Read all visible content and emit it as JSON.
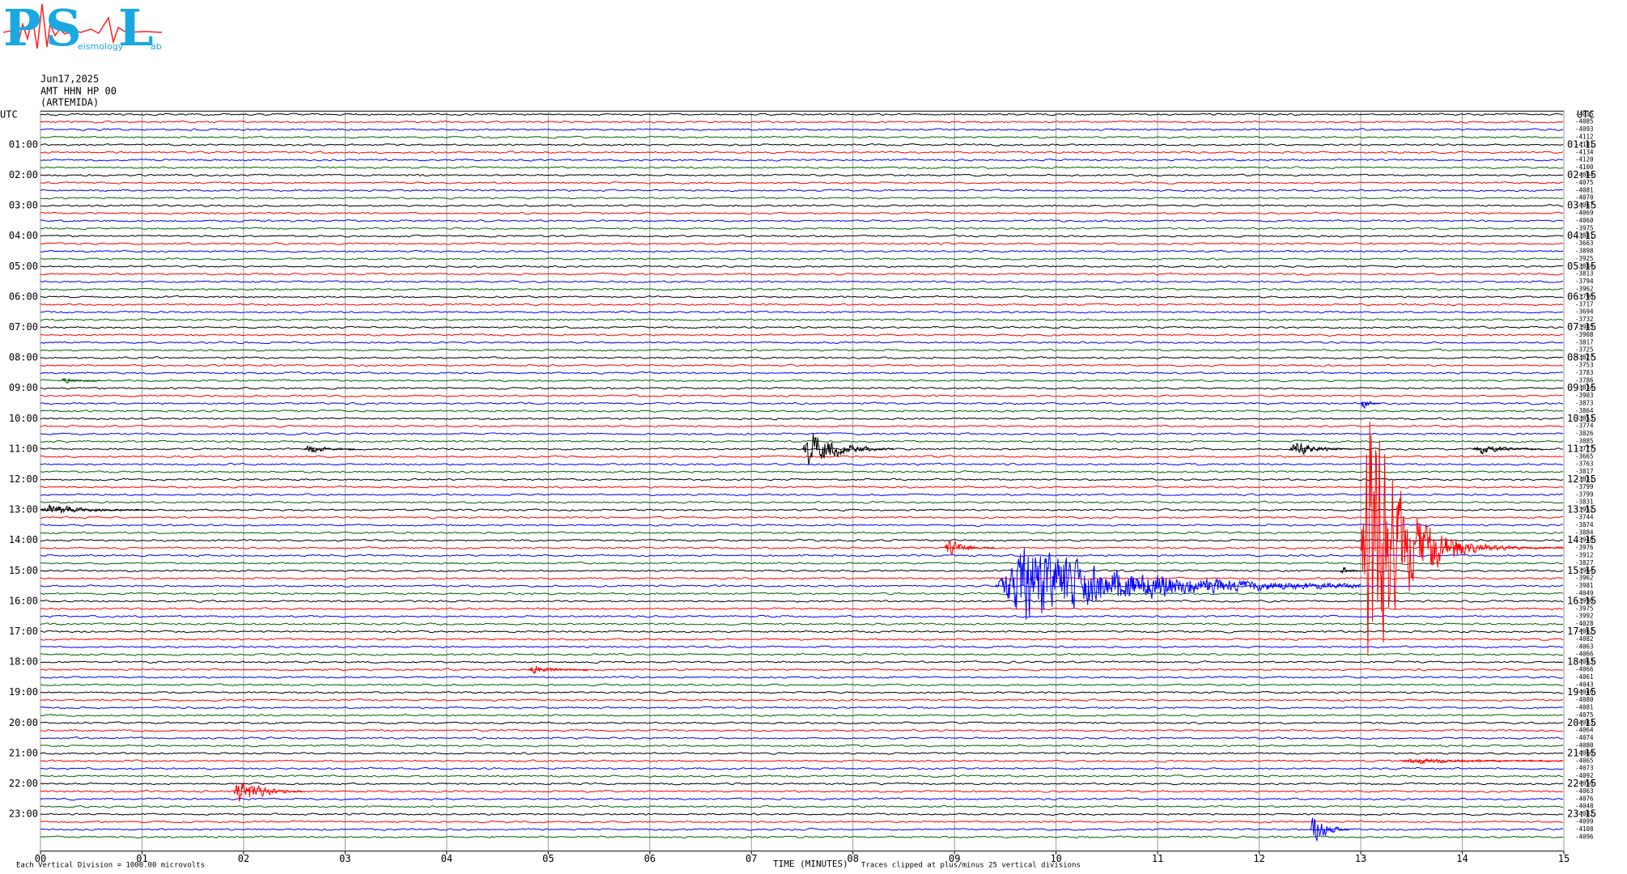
{
  "logo": {
    "letters": [
      "P",
      "S",
      "L"
    ],
    "words": [
      "eismology",
      "ab"
    ]
  },
  "chart_data": {
    "type": "helicorder",
    "date": "Jun17,2025",
    "station": "AMT HHN HP 00",
    "site": "(ARTEMIDA)",
    "left_axis_title": "UTC",
    "right_axis_title": "UTC",
    "left_labels": [
      "01:00",
      "02:00",
      "03:00",
      "04:00",
      "05:00",
      "06:00",
      "07:00",
      "08:00",
      "09:00",
      "10:00",
      "11:00",
      "12:00",
      "13:00",
      "14:00",
      "15:00",
      "16:00",
      "17:00",
      "18:00",
      "19:00",
      "20:00",
      "21:00",
      "22:00",
      "23:00"
    ],
    "right_labels": [
      "01:15",
      "02:15",
      "03:15",
      "04:15",
      "05:15",
      "06:15",
      "07:15",
      "08:15",
      "09:15",
      "10:15",
      "11:15",
      "12:15",
      "13:15",
      "14:15",
      "15:15",
      "16:15",
      "17:15",
      "18:15",
      "19:15",
      "20:15",
      "21:15",
      "22:15",
      "23:15"
    ],
    "trace_offsets": [
      -4015,
      -4085,
      -4093,
      -4112,
      -4101,
      -4134,
      -4120,
      -4100,
      -4084,
      -4075,
      -4081,
      -4070,
      -4067,
      -4069,
      -4060,
      -3975,
      -3881,
      -3663,
      -3898,
      -3925,
      -3884,
      -3813,
      -3794,
      -3962,
      -3796,
      -3717,
      -3694,
      -3732,
      -3985,
      -3908,
      -3817,
      -3725,
      -3827,
      -3753,
      -3783,
      -3786,
      -3834,
      -3903,
      -3873,
      -3864,
      -3853,
      -3774,
      -3826,
      -3885,
      -3777,
      -3665,
      -3763,
      -3817,
      -3831,
      -3799,
      -3799,
      -3831,
      -3952,
      -3744,
      -3874,
      -3884,
      -3948,
      -3976,
      -3912,
      -3827,
      -3964,
      -3962,
      -3981,
      -4049,
      -3990,
      -3975,
      -3992,
      -4028,
      -4062,
      -4082,
      -4063,
      -4066,
      -4063,
      -4066,
      -4061,
      -4043,
      -4046,
      -4080,
      -4081,
      -4075,
      -4083,
      -4064,
      -4074,
      -4080,
      -4066,
      -4065,
      -4073,
      -4092,
      -4056,
      -4063,
      -4076,
      -4048,
      -4082,
      -4099,
      -4108,
      -4096
    ],
    "trace_colors": [
      "#000000",
      "#ff0000",
      "#0000ff",
      "#006400"
    ],
    "xlim": [
      0,
      15
    ],
    "xticks": [
      {
        "value": 0,
        "label": "00"
      },
      {
        "value": 1,
        "label": "01"
      },
      {
        "value": 2,
        "label": "02"
      },
      {
        "value": 3,
        "label": "03"
      },
      {
        "value": 4,
        "label": "04"
      },
      {
        "value": 5,
        "label": "05"
      },
      {
        "value": 6,
        "label": "06"
      },
      {
        "value": 7,
        "label": "07"
      },
      {
        "value": 8,
        "label": "08"
      },
      {
        "value": 9,
        "label": "09"
      },
      10,
      11,
      12,
      13,
      14,
      15
    ],
    "xlabel": "TIME (MINUTES)",
    "scale_note": "Each Vertical Division = 1000.00 microvolts",
    "clip_note": "Traces clipped at plus/minus 25 vertical divisions",
    "grid": true,
    "events": [
      {
        "trace": 57,
        "from": 13.0,
        "to": 14.0,
        "amp": 25
      },
      {
        "trace": 57,
        "from": 13.9,
        "to": 15,
        "amp": 1.2
      },
      {
        "trace": 62,
        "from": 9.4,
        "to": 13.0,
        "amp": 6
      },
      {
        "trace": 57,
        "from": 8.9,
        "to": 9.4,
        "amp": 1.5
      },
      {
        "trace": 44,
        "from": 7.5,
        "to": 8.4,
        "amp": 3
      },
      {
        "trace": 44,
        "from": 12.3,
        "to": 12.9,
        "amp": 1.5
      },
      {
        "trace": 44,
        "from": 14.1,
        "to": 14.8,
        "amp": 1
      },
      {
        "trace": 44,
        "from": 2.6,
        "to": 3.1,
        "amp": 0.8
      },
      {
        "trace": 52,
        "from": 0,
        "to": 1.1,
        "amp": 0.9
      },
      {
        "trace": 89,
        "from": 1.9,
        "to": 2.6,
        "amp": 2.2
      },
      {
        "trace": 94,
        "from": 12.5,
        "to": 12.9,
        "amp": 2.5
      },
      {
        "trace": 73,
        "from": 4.8,
        "to": 5.4,
        "amp": 0.8
      },
      {
        "trace": 60,
        "from": 12.8,
        "to": 13.0,
        "amp": 1
      },
      {
        "trace": 85,
        "from": 13.4,
        "to": 15,
        "amp": 0.5
      },
      {
        "trace": 38,
        "from": 13.0,
        "to": 13.2,
        "amp": 1
      },
      {
        "trace": 35,
        "from": 0.2,
        "to": 0.6,
        "amp": 0.6
      }
    ]
  }
}
